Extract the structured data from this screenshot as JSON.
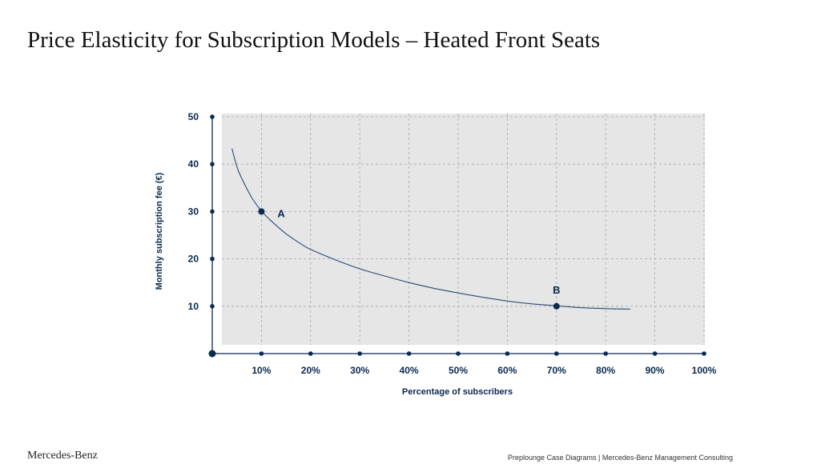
{
  "title": "Price Elasticity for Subscription Models – Heated Front Seats",
  "footer": {
    "brand": "Mercedes-Benz",
    "note": "Preplounge Case Diagrams  |  Mercedes-Benz Management Consulting"
  },
  "chart_data": {
    "type": "line",
    "xlabel": "Percentage of subscribers",
    "ylabel": "Monthly subscription fee (€)",
    "xlim": [
      0,
      100
    ],
    "ylim": [
      0,
      50
    ],
    "x_ticks": [
      10,
      20,
      30,
      40,
      50,
      60,
      70,
      80,
      90,
      100
    ],
    "x_tick_labels": [
      "10%",
      "20%",
      "30%",
      "40%",
      "50%",
      "60%",
      "70%",
      "80%",
      "90%",
      "100%"
    ],
    "y_ticks": [
      10,
      20,
      30,
      40,
      50
    ],
    "y_tick_labels": [
      "10",
      "20",
      "30",
      "40",
      "50"
    ],
    "grid": true,
    "series": [
      {
        "x": [
          4,
          5,
          6,
          8,
          10,
          12,
          15,
          18,
          20,
          25,
          30,
          35,
          40,
          45,
          50,
          55,
          60,
          65,
          70,
          75,
          80,
          85
        ],
        "y": [
          43.3,
          39.5,
          37,
          33,
          30.1,
          28,
          25.3,
          23.2,
          22,
          19.8,
          17.9,
          16.4,
          15,
          13.8,
          12.8,
          11.9,
          11.1,
          10.5,
          10.1,
          9.7,
          9.5,
          9.4
        ]
      }
    ],
    "points": [
      {
        "label": "A",
        "x": 10,
        "y": 30
      },
      {
        "label": "B",
        "x": 70,
        "y": 10
      }
    ],
    "colors": {
      "plot_background": "#e6e6e6",
      "grid": "#a8a8a8",
      "line": "#2b4a7a",
      "axis": "#0a2a50",
      "text": "#0a2a50"
    }
  }
}
